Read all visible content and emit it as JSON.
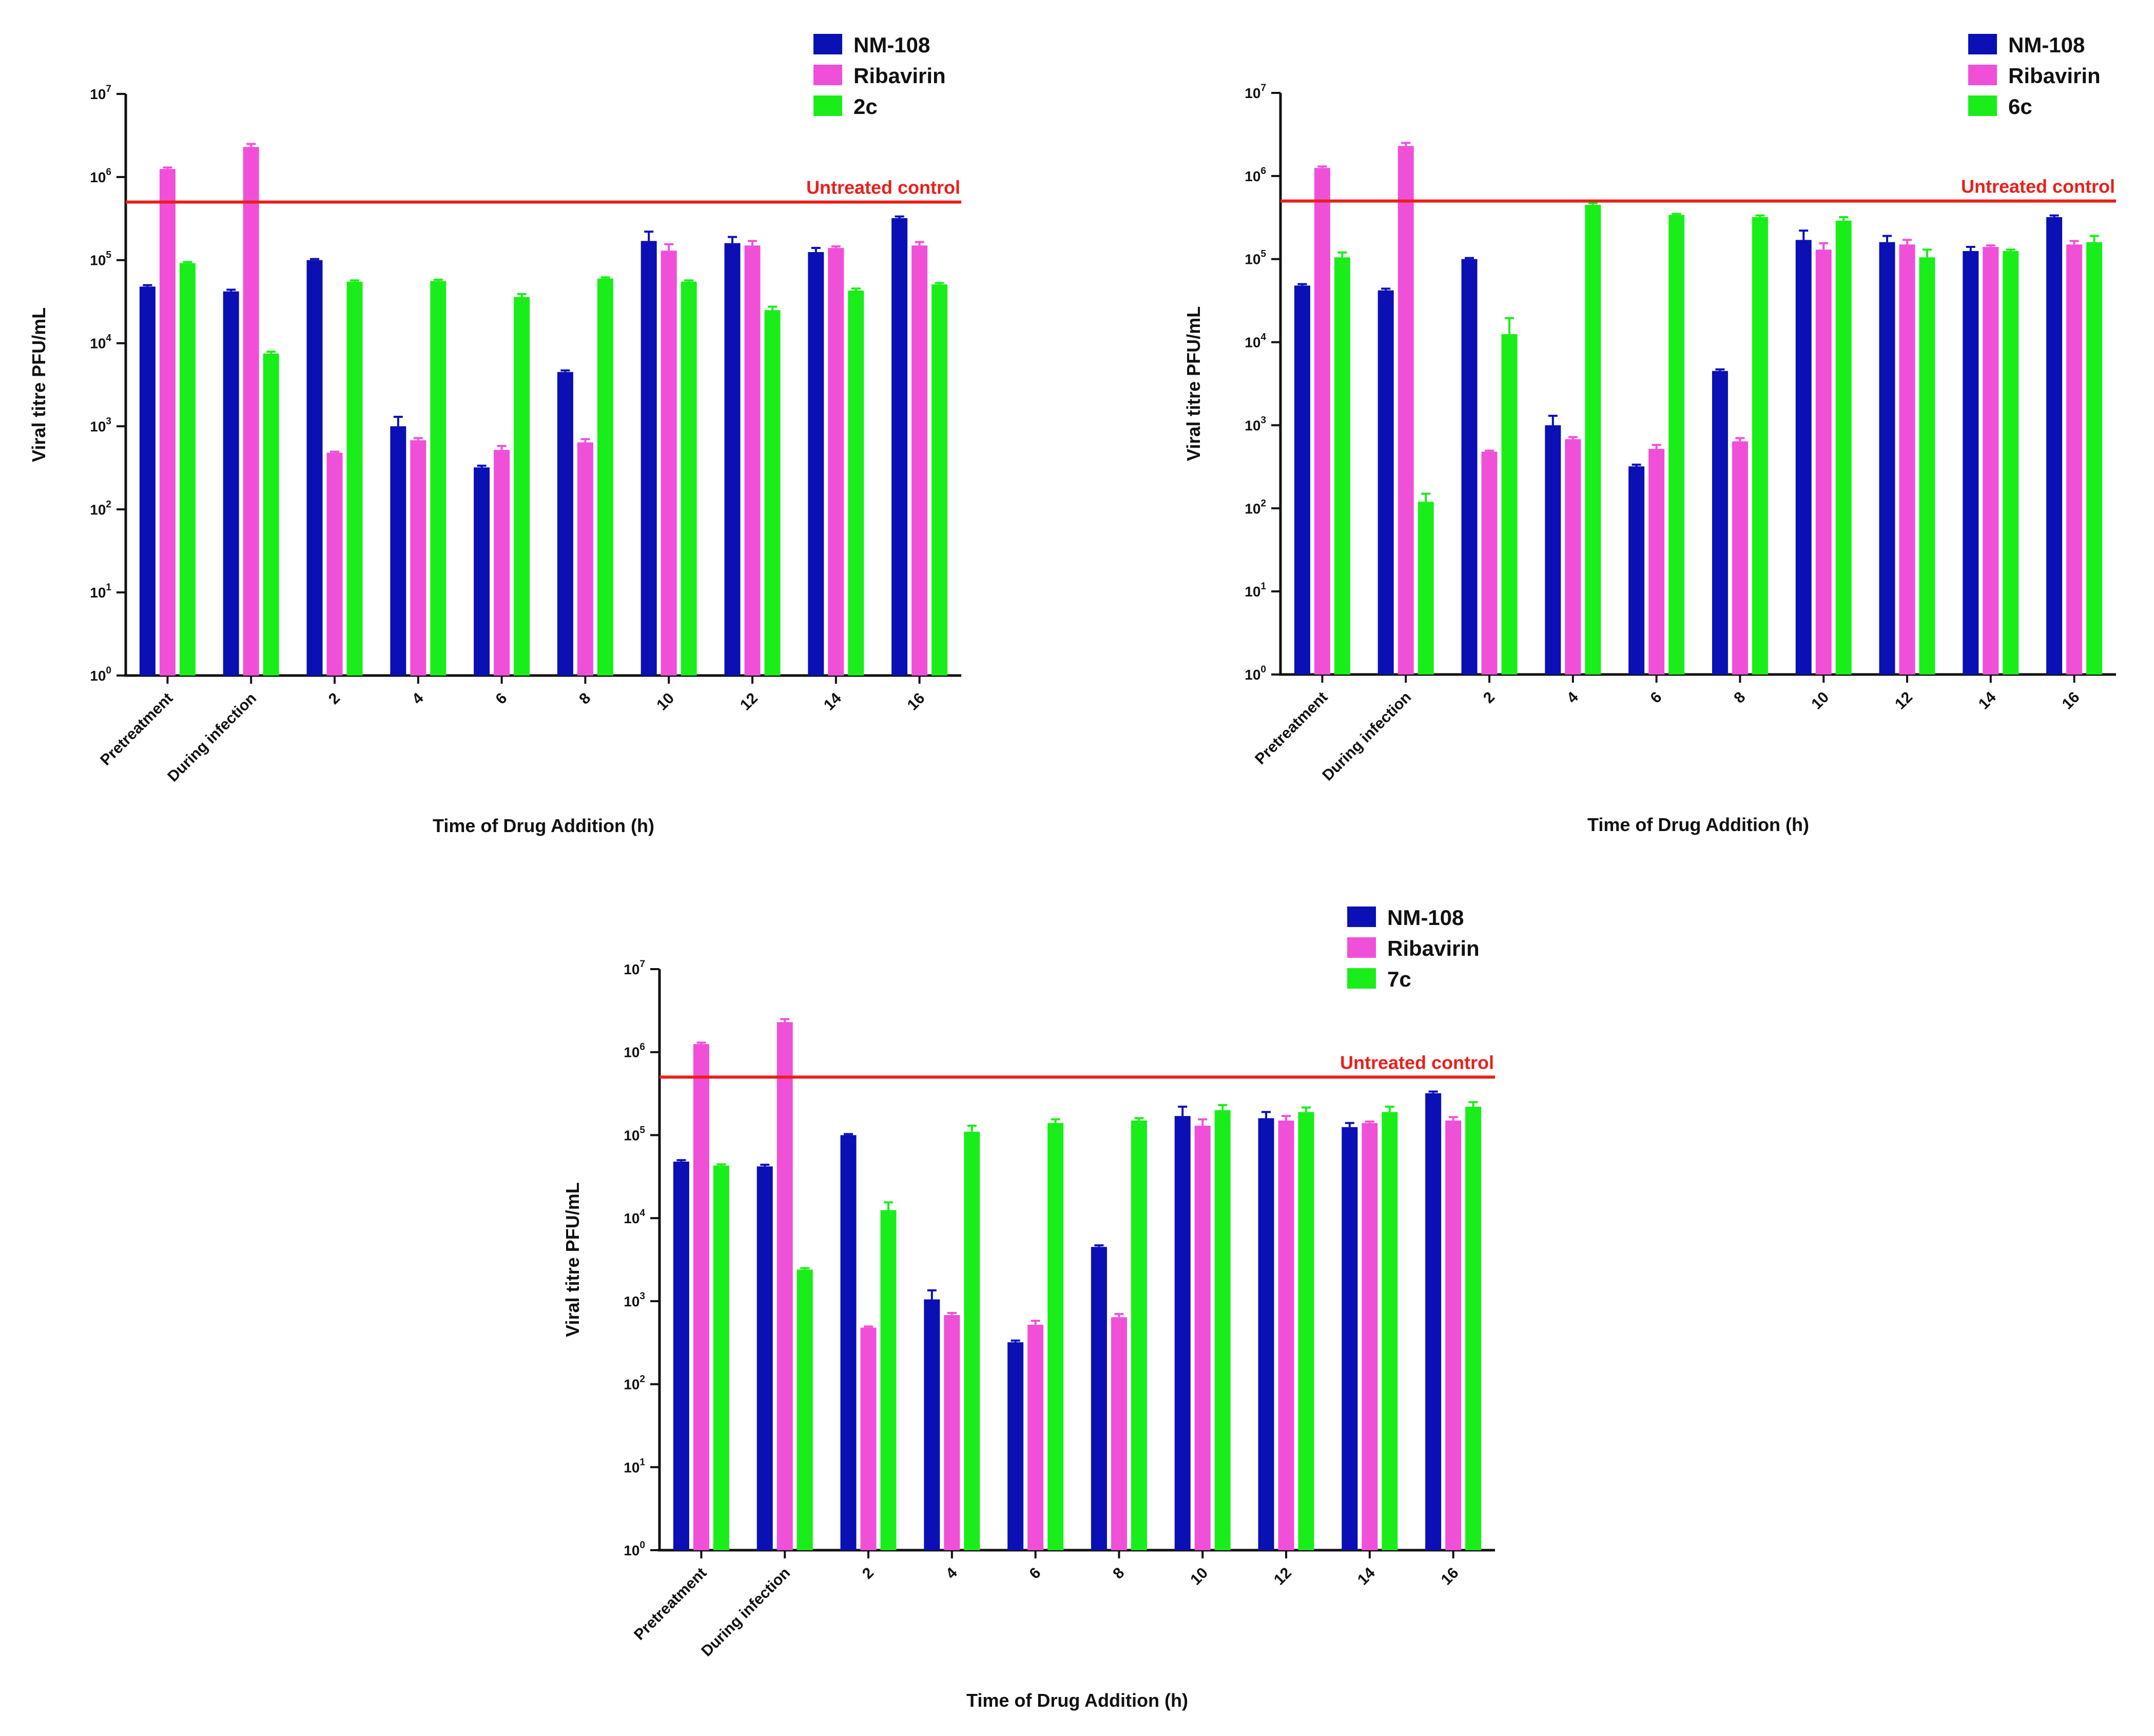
{
  "figure": {
    "background": "#ffffff"
  },
  "chart_data": [
    {
      "type": "bar",
      "panel": "top-left",
      "xlabel": "Time of Drug Addition (h)",
      "ylabel": "Viral titre PFU/mL",
      "yscale": "log10",
      "ylim": [
        1,
        10000000
      ],
      "yticks": [
        {
          "base": "10",
          "exp": "0"
        },
        {
          "base": "10",
          "exp": "1"
        },
        {
          "base": "10",
          "exp": "2"
        },
        {
          "base": "10",
          "exp": "3"
        },
        {
          "base": "10",
          "exp": "4"
        },
        {
          "base": "10",
          "exp": "5"
        },
        {
          "base": "10",
          "exp": "6"
        },
        {
          "base": "10",
          "exp": "7"
        }
      ],
      "categories": [
        "Pretreatment",
        "During infection",
        "2",
        "4",
        "6",
        "8",
        "10",
        "12",
        "14",
        "16"
      ],
      "series": [
        {
          "name": "NM-108",
          "color": "#0a10b4",
          "values": [
            48000,
            42000,
            100000,
            1000,
            320,
            4500,
            170000,
            160000,
            125000,
            320000
          ],
          "errors": [
            2000,
            2000,
            3000,
            300,
            15,
            200,
            50000,
            30000,
            15000,
            15000
          ]
        },
        {
          "name": "Ribavirin",
          "color": "#f050d8",
          "values": [
            1250000,
            2300000,
            480,
            680,
            520,
            640,
            130000,
            150000,
            140000,
            150000
          ],
          "errors": [
            50000,
            200000,
            15,
            40,
            60,
            60,
            25000,
            20000,
            6000,
            15000
          ]
        },
        {
          "name": "2c",
          "color": "#1aee1a",
          "values": [
            92000,
            7500,
            55000,
            56000,
            36000,
            60000,
            55000,
            25000,
            43000,
            51000
          ],
          "errors": [
            3000,
            400,
            2000,
            2000,
            3000,
            2000,
            2000,
            2500,
            2500,
            2000
          ]
        }
      ],
      "reference_line": {
        "label": "Untreated control",
        "value": 500000,
        "color": "#e8201c"
      },
      "legend_position": "top-right"
    },
    {
      "type": "bar",
      "panel": "top-right",
      "xlabel": "Time of Drug Addition (h)",
      "ylabel": "Viral titre PFU/mL",
      "yscale": "log10",
      "ylim": [
        1,
        10000000
      ],
      "yticks": [
        {
          "base": "10",
          "exp": "0"
        },
        {
          "base": "10",
          "exp": "1"
        },
        {
          "base": "10",
          "exp": "2"
        },
        {
          "base": "10",
          "exp": "3"
        },
        {
          "base": "10",
          "exp": "4"
        },
        {
          "base": "10",
          "exp": "5"
        },
        {
          "base": "10",
          "exp": "6"
        },
        {
          "base": "10",
          "exp": "7"
        }
      ],
      "categories": [
        "Pretreatment",
        "During infection",
        "2",
        "4",
        "6",
        "8",
        "10",
        "12",
        "14",
        "16"
      ],
      "series": [
        {
          "name": "NM-108",
          "color": "#0a10b4",
          "values": [
            48000,
            42000,
            100000,
            1000,
            320,
            4500,
            170000,
            160000,
            125000,
            320000
          ],
          "errors": [
            2000,
            2000,
            3000,
            300,
            15,
            200,
            50000,
            30000,
            15000,
            15000
          ]
        },
        {
          "name": "Ribavirin",
          "color": "#f050d8",
          "values": [
            1250000,
            2300000,
            480,
            680,
            520,
            640,
            130000,
            150000,
            140000,
            150000
          ],
          "errors": [
            50000,
            200000,
            15,
            40,
            60,
            60,
            25000,
            20000,
            6000,
            15000
          ]
        },
        {
          "name": "6c",
          "color": "#1aee1a",
          "values": [
            105000,
            120,
            12500,
            450000,
            340000,
            320000,
            290000,
            105000,
            125000,
            160000
          ],
          "errors": [
            15000,
            30,
            7000,
            20000,
            10000,
            15000,
            30000,
            25000,
            5000,
            30000
          ]
        }
      ],
      "reference_line": {
        "label": "Untreated control",
        "value": 500000,
        "color": "#e8201c"
      },
      "legend_position": "top-right"
    },
    {
      "type": "bar",
      "panel": "bottom-center",
      "xlabel": "Time of Drug Addition (h)",
      "ylabel": "Viral titre PFU/mL",
      "yscale": "log10",
      "ylim": [
        1,
        10000000
      ],
      "yticks": [
        {
          "base": "10",
          "exp": "0"
        },
        {
          "base": "10",
          "exp": "1"
        },
        {
          "base": "10",
          "exp": "2"
        },
        {
          "base": "10",
          "exp": "3"
        },
        {
          "base": "10",
          "exp": "4"
        },
        {
          "base": "10",
          "exp": "5"
        },
        {
          "base": "10",
          "exp": "6"
        },
        {
          "base": "10",
          "exp": "7"
        }
      ],
      "categories": [
        "Pretreatment",
        "During infection",
        "2",
        "4",
        "6",
        "8",
        "10",
        "12",
        "14",
        "16"
      ],
      "series": [
        {
          "name": "NM-108",
          "color": "#0a10b4",
          "values": [
            48000,
            42000,
            100000,
            1050,
            320,
            4500,
            170000,
            160000,
            125000,
            320000
          ],
          "errors": [
            2000,
            2000,
            3000,
            300,
            15,
            200,
            50000,
            30000,
            15000,
            15000
          ]
        },
        {
          "name": "Ribavirin",
          "color": "#f050d8",
          "values": [
            1250000,
            2300000,
            480,
            680,
            520,
            640,
            130000,
            150000,
            140000,
            150000
          ],
          "errors": [
            50000,
            200000,
            15,
            40,
            60,
            60,
            25000,
            20000,
            6000,
            15000
          ]
        },
        {
          "name": "7c",
          "color": "#1aee1a",
          "values": [
            43000,
            2400,
            12500,
            110000,
            140000,
            150000,
            200000,
            190000,
            190000,
            220000
          ],
          "errors": [
            1500,
            100,
            3000,
            20000,
            15000,
            10000,
            30000,
            25000,
            30000,
            30000
          ]
        }
      ],
      "reference_line": {
        "label": "Untreated control",
        "value": 500000,
        "color": "#e8201c"
      },
      "legend_position": "top-right"
    }
  ]
}
